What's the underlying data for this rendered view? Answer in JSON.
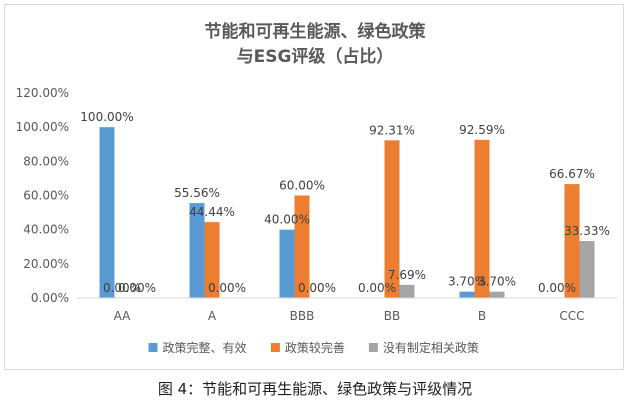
{
  "chart_data": {
    "type": "bar",
    "title_lines": [
      "节能和可再生能源、绿色政策",
      "与ESG评级（占比）"
    ],
    "categories": [
      "AA",
      "A",
      "BBB",
      "BB",
      "B",
      "CCC"
    ],
    "series": [
      {
        "name": "政策完整、有效",
        "color": "#5b9bd5",
        "values": [
          100.0,
          55.56,
          40.0,
          0.0,
          3.7,
          0.0
        ],
        "labels": [
          "100.00%",
          "55.56%",
          "40.00%",
          "0.00%",
          "3.70%",
          "0.00%"
        ]
      },
      {
        "name": "政策较完善",
        "color": "#ed7d31",
        "values": [
          0.0,
          44.44,
          60.0,
          92.31,
          92.59,
          66.67
        ],
        "labels": [
          "0.00%",
          "44.44%",
          "60.00%",
          "92.31%",
          "92.59%",
          "66.67%"
        ]
      },
      {
        "name": "没有制定相关政策",
        "color": "#a5a5a5",
        "values": [
          0.0,
          0.0,
          0.0,
          7.69,
          3.7,
          33.33
        ],
        "labels": [
          "0.00%",
          "0.00%",
          "0.00%",
          "7.69%",
          "3.70%",
          "33.33%"
        ]
      }
    ],
    "y_ticks": [
      "0.00%",
      "20.00%",
      "40.00%",
      "60.00%",
      "80.00%",
      "100.00%",
      "120.00%"
    ],
    "ylim": [
      0,
      120
    ],
    "grid": false,
    "legend_position": "bottom"
  },
  "caption": "图 4：节能和可再生能源、绿色政策与评级情况"
}
